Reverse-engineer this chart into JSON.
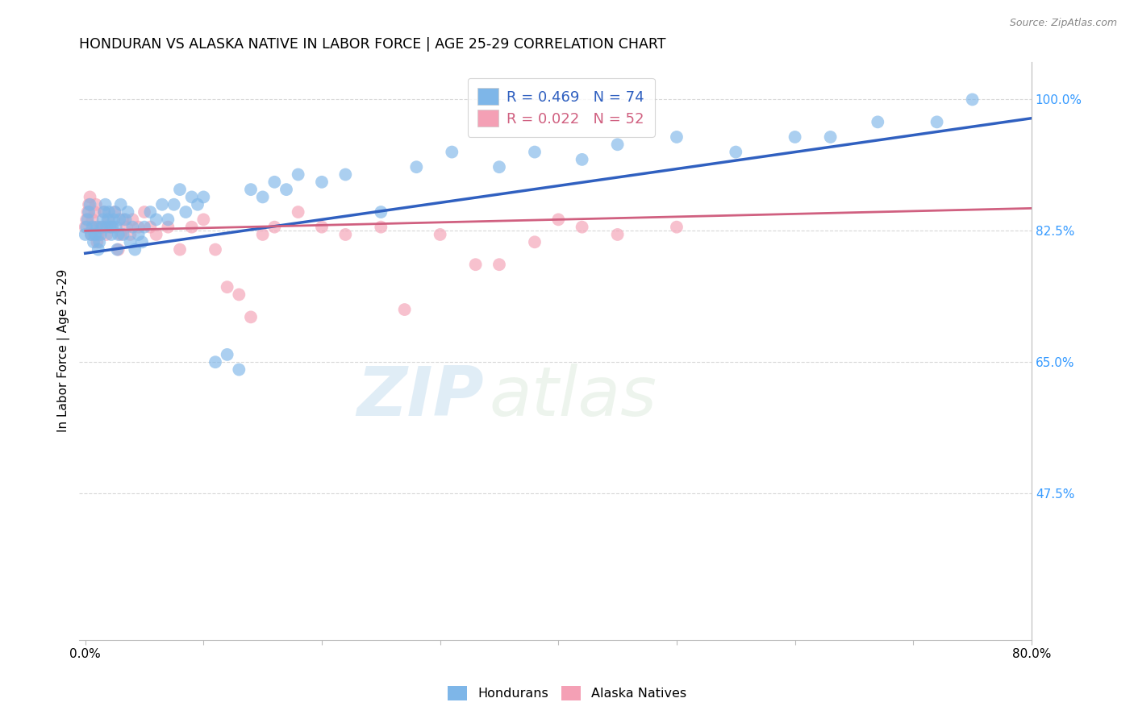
{
  "title": "HONDURAN VS ALASKA NATIVE IN LABOR FORCE | AGE 25-29 CORRELATION CHART",
  "source": "Source: ZipAtlas.com",
  "ylabel": "In Labor Force | Age 25-29",
  "xlim": [
    -0.5,
    80.0
  ],
  "ylim": [
    28.0,
    105.0
  ],
  "xtick_positions": [
    0,
    10,
    20,
    30,
    40,
    50,
    60,
    70,
    80
  ],
  "xticklabels": [
    "0.0%",
    "",
    "",
    "",
    "",
    "",
    "",
    "",
    "80.0%"
  ],
  "yticks_right": [
    47.5,
    65.0,
    82.5,
    100.0
  ],
  "yticklabels_right": [
    "47.5%",
    "65.0%",
    "82.5%",
    "100.0%"
  ],
  "R_honduran": 0.469,
  "N_honduran": 74,
  "R_alaska": 0.022,
  "N_alaska": 52,
  "honduran_color": "#7eb6e8",
  "alaska_color": "#f4a0b5",
  "line_honduran_color": "#3060c0",
  "line_alaska_color": "#d06080",
  "background_color": "#ffffff",
  "grid_color": "#d8d8d8",
  "watermark_zip": "ZIP",
  "watermark_atlas": "atlas",
  "honduran_x": [
    0.0,
    0.1,
    0.2,
    0.3,
    0.4,
    0.5,
    0.6,
    0.7,
    0.8,
    0.9,
    1.0,
    1.1,
    1.2,
    1.3,
    1.4,
    1.5,
    1.6,
    1.7,
    1.8,
    1.9,
    2.0,
    2.1,
    2.2,
    2.3,
    2.4,
    2.5,
    2.6,
    2.7,
    2.8,
    2.9,
    3.0,
    3.2,
    3.4,
    3.6,
    3.8,
    4.0,
    4.2,
    4.5,
    4.8,
    5.0,
    5.5,
    6.0,
    6.5,
    7.0,
    7.5,
    8.0,
    8.5,
    9.0,
    9.5,
    10.0,
    11.0,
    12.0,
    13.0,
    14.0,
    15.0,
    16.0,
    17.0,
    18.0,
    20.0,
    22.0,
    25.0,
    28.0,
    31.0,
    35.0,
    38.0,
    42.0,
    45.0,
    50.0,
    55.0,
    60.0,
    63.0,
    67.0,
    72.0,
    75.0
  ],
  "honduran_y": [
    82,
    83,
    84,
    85,
    86,
    82,
    83,
    81,
    82,
    82,
    83,
    80,
    81,
    82,
    83,
    84,
    85,
    86,
    83,
    84,
    85,
    83,
    82,
    83,
    84,
    85,
    83,
    80,
    82,
    84,
    86,
    82,
    84,
    85,
    81,
    83,
    80,
    82,
    81,
    83,
    85,
    84,
    86,
    84,
    86,
    88,
    85,
    87,
    86,
    87,
    65,
    66,
    64,
    88,
    87,
    89,
    88,
    90,
    89,
    90,
    85,
    91,
    93,
    91,
    93,
    92,
    94,
    95,
    93,
    95,
    95,
    97,
    97,
    100
  ],
  "alaska_x": [
    0.0,
    0.1,
    0.2,
    0.3,
    0.4,
    0.5,
    0.6,
    0.7,
    0.8,
    0.9,
    1.0,
    1.1,
    1.2,
    1.5,
    1.6,
    1.8,
    2.0,
    2.2,
    2.5,
    2.8,
    3.0,
    3.2,
    3.5,
    3.8,
    4.0,
    4.5,
    5.0,
    5.5,
    6.0,
    7.0,
    8.0,
    9.0,
    10.0,
    11.0,
    12.0,
    13.0,
    14.0,
    15.0,
    16.0,
    18.0,
    20.0,
    22.0,
    25.0,
    27.0,
    30.0,
    33.0,
    35.0,
    38.0,
    40.0,
    42.0,
    45.0,
    50.0
  ],
  "alaska_y": [
    83,
    84,
    85,
    86,
    87,
    82,
    84,
    83,
    85,
    86,
    81,
    82,
    83,
    83,
    85,
    82,
    84,
    83,
    85,
    80,
    82,
    84,
    83,
    82,
    84,
    83,
    85,
    83,
    82,
    83,
    80,
    83,
    84,
    80,
    75,
    74,
    71,
    82,
    83,
    85,
    83,
    82,
    83,
    72,
    82,
    78,
    78,
    81,
    84,
    83,
    82,
    83
  ],
  "line_h_x0": 0,
  "line_h_x1": 80,
  "line_h_y0": 79.5,
  "line_h_y1": 97.5,
  "line_a_x0": 0,
  "line_a_x1": 80,
  "line_a_y0": 82.5,
  "line_a_y1": 85.5
}
